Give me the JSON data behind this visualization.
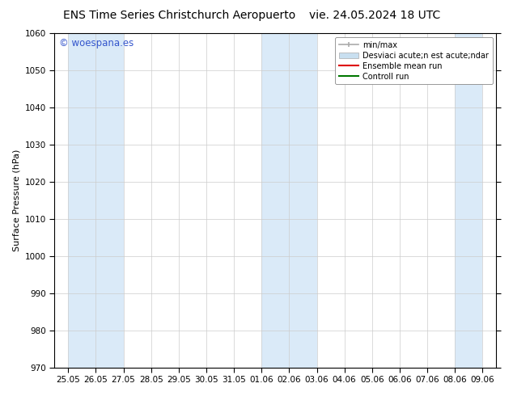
{
  "title_left": "ENS Time Series Christchurch Aeropuerto",
  "title_right": "vie. 24.05.2024 18 UTC",
  "ylabel": "Surface Pressure (hPa)",
  "ylim": [
    970,
    1060
  ],
  "yticks": [
    970,
    980,
    990,
    1000,
    1010,
    1020,
    1030,
    1040,
    1050,
    1060
  ],
  "xtick_labels": [
    "25.05",
    "26.05",
    "27.05",
    "28.05",
    "29.05",
    "30.05",
    "31.05",
    "01.06",
    "02.06",
    "03.06",
    "04.06",
    "05.06",
    "06.06",
    "07.06",
    "08.06",
    "09.06"
  ],
  "background_color": "#ffffff",
  "plot_bg_color": "#ffffff",
  "shaded_bands": [
    {
      "xstart": 0,
      "xend": 1,
      "color": "#daeaf8"
    },
    {
      "xstart": 1,
      "xend": 2,
      "color": "#daeaf8"
    },
    {
      "xstart": 7,
      "xend": 8,
      "color": "#daeaf8"
    },
    {
      "xstart": 8,
      "xend": 9,
      "color": "#daeaf8"
    },
    {
      "xstart": 14,
      "xend": 15,
      "color": "#daeaf8"
    }
  ],
  "watermark_text": "© woespana.es",
  "watermark_color": "#3355cc",
  "legend_label_minmax": "min/max",
  "legend_label_desv": "Desviaci acute;n est acute;ndar",
  "legend_label_ens": "Ensemble mean run",
  "legend_label_ctrl": "Controll run",
  "color_minmax": "#aaaaaa",
  "color_desv": "#c8dff0",
  "color_ens": "#dd0000",
  "color_ctrl": "#007700",
  "title_fontsize": 10,
  "axis_fontsize": 8,
  "tick_fontsize": 7.5
}
